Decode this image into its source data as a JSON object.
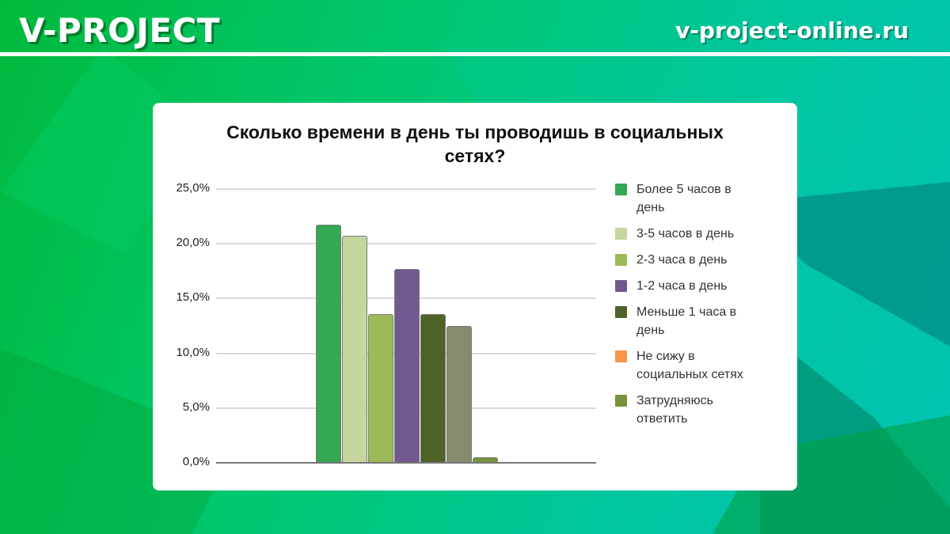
{
  "header": {
    "brand": "V-PROJECT",
    "site": "v-project-online.ru"
  },
  "chart_data": {
    "type": "bar",
    "title": "Сколько времени в день ты проводишь в социальных сетях?",
    "title_lines": [
      "Сколько времени в день ты проводишь в социальных",
      "сетях?"
    ],
    "xlabel": "",
    "ylabel": "",
    "ylim": [
      0,
      25
    ],
    "yticks": [
      "25,0%",
      "20,0%",
      "15,0%",
      "10,0%",
      "5,0%",
      "0,0%"
    ],
    "grid": true,
    "legend_position": "right",
    "series": [
      {
        "name": "Более 5 часов в день",
        "value": 21.7,
        "color": "#34a853"
      },
      {
        "name": "3-5 часов в день",
        "value": 20.7,
        "color": "#c5d79d"
      },
      {
        "name": "2-3 часа в день",
        "value": 13.5,
        "color": "#9cbb58"
      },
      {
        "name": "1-2 часа в день",
        "value": 17.6,
        "color": "#725990"
      },
      {
        "name": "Меньше 1 часа в день",
        "value": 13.5,
        "color": "#4f6228"
      },
      {
        "name": "",
        "value": 12.4,
        "color": "#878c6e"
      },
      {
        "name": "Затрудняюсь ответить",
        "value": 0.4,
        "color": "#77933c"
      }
    ],
    "legend": [
      {
        "label": "Более 5 часов в день",
        "lines": [
          "Более 5 часов в",
          "день"
        ],
        "color": "#34a853"
      },
      {
        "label": "3-5 часов в день",
        "lines": [
          "3-5 часов в день"
        ],
        "color": "#c5d79d"
      },
      {
        "label": "2-3 часа в день",
        "lines": [
          "2-3 часа в день"
        ],
        "color": "#9cbb58"
      },
      {
        "label": "1-2 часа в день",
        "lines": [
          "1-2 часа в день"
        ],
        "color": "#725990"
      },
      {
        "label": "Меньше 1 часа в день",
        "lines": [
          "Меньше 1 часа в",
          "день"
        ],
        "color": "#4f6228"
      },
      {
        "label": "Не сижу в социальных сетях",
        "lines": [
          "Не сижу в",
          "социальных сетях"
        ],
        "color": "#f79646"
      },
      {
        "label": "Затрудняюсь ответить",
        "lines": [
          "Затрудняюсь",
          "ответить"
        ],
        "color": "#77933c"
      }
    ]
  }
}
